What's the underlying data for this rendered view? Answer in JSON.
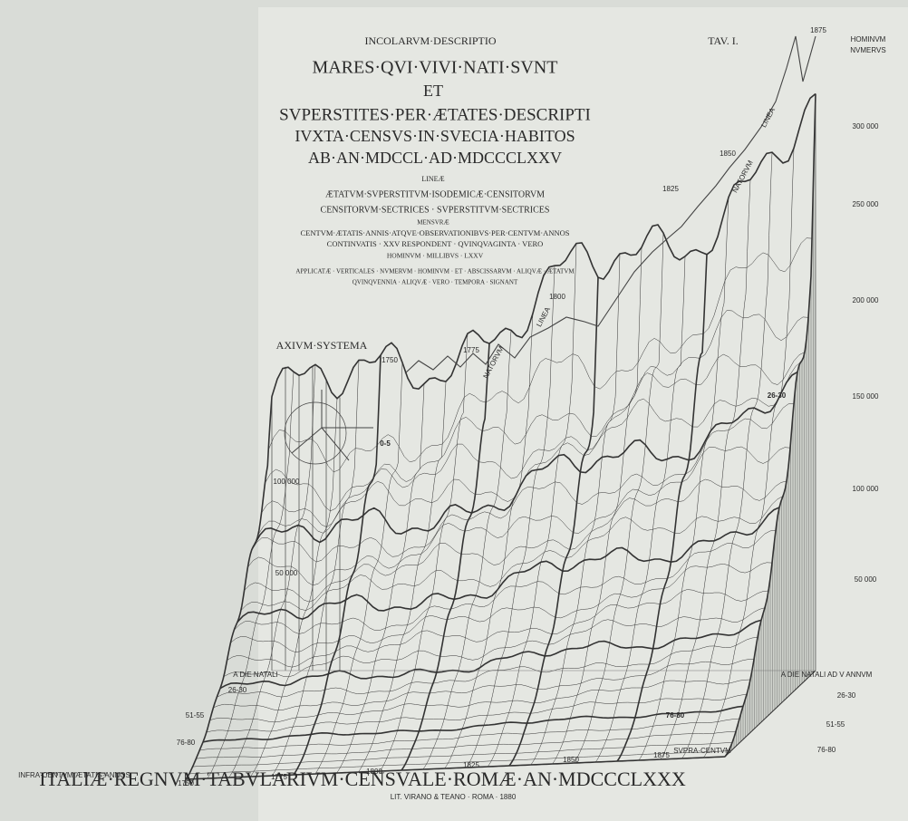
{
  "plate": {
    "tav": "TAV. I.",
    "title": {
      "lines": [
        "INCOLARVM·DESCRIPTIO",
        "MARES·QVI·VIVI·NATI·SVNT",
        "ET",
        "SVPERSTITES·PER·ÆTATES·DESCRIPTI",
        "IVXTA·CENSVS·IN·SVECIA·HABITOS",
        "AB·AN·MDCCL·AD·MDCCCLXXV"
      ]
    },
    "legend": {
      "heading": "LINEÆ",
      "lines": [
        "ÆTATVM·SVPERSTITVM·ISODEMICÆ·CENSITORVM",
        "CENSITORVM·SECTRICES · SVPERSTITVM·SECTRICES"
      ],
      "measure_heading": "MENSVRÆ",
      "measure_lines": [
        "CENTVM·ÆTATIS·ANNIS·ATQVE·OBSERVATIONIBVS·PER·CENTVM·ANNOS",
        "CONTINVATIS · XXV RESPONDENT · QVINQVAGINTA · VERO",
        "HOMINVM · MILLIBVS · LXXV",
        "APPLICATÆ · VERTICALES · NVMERVM · HOMINVM · ET · ABSCISSARVM · ALIQVÆ · ÆTATVM",
        "QVINQVENNIA · ALIQVÆ · VERO · TEMPORA · SIGNANT"
      ]
    },
    "axis_system": "AXIVM·SYSTEMA",
    "right_axis": {
      "title": [
        "HOMINVM",
        "NVMERVS"
      ],
      "labels": [
        "300 000",
        "250 000",
        "200 000",
        "150 000",
        "100 000",
        "50 000"
      ]
    },
    "left_axis": {
      "labels": [
        "100 000",
        "50 000"
      ]
    },
    "natorum_years": [
      "1750",
      "1775",
      "1800",
      "1825",
      "1850",
      "1875"
    ],
    "natorum_labels": [
      "NATORVM",
      "LINEA",
      "NATORVM",
      "LINEA"
    ],
    "base_years": [
      "1750",
      "1775",
      "1800",
      "1825",
      "1850",
      "1875"
    ],
    "base_labels": {
      "supra": "SVPRA·CENTVM",
      "infra": "INFRA·CENTVM·ÆTATIS·ANNOS"
    },
    "left_ages": [
      "A DIE NATALI",
      "26-30",
      "51-55",
      "76-80"
    ],
    "right_ages": [
      "A DIE NATALI AD V ANNVM",
      "26-30",
      "51-55",
      "76-80"
    ],
    "surface_labels": [
      "0-5",
      "26-30",
      "76-80"
    ],
    "footer": "ITALIÆ·REGNVM·TABVLARIVM·CENSVALE·ROMÆ·AN·MDCCCLXXX",
    "imprint": "LIT. VIRANO & TEANO · ROMA · 1880"
  }
}
